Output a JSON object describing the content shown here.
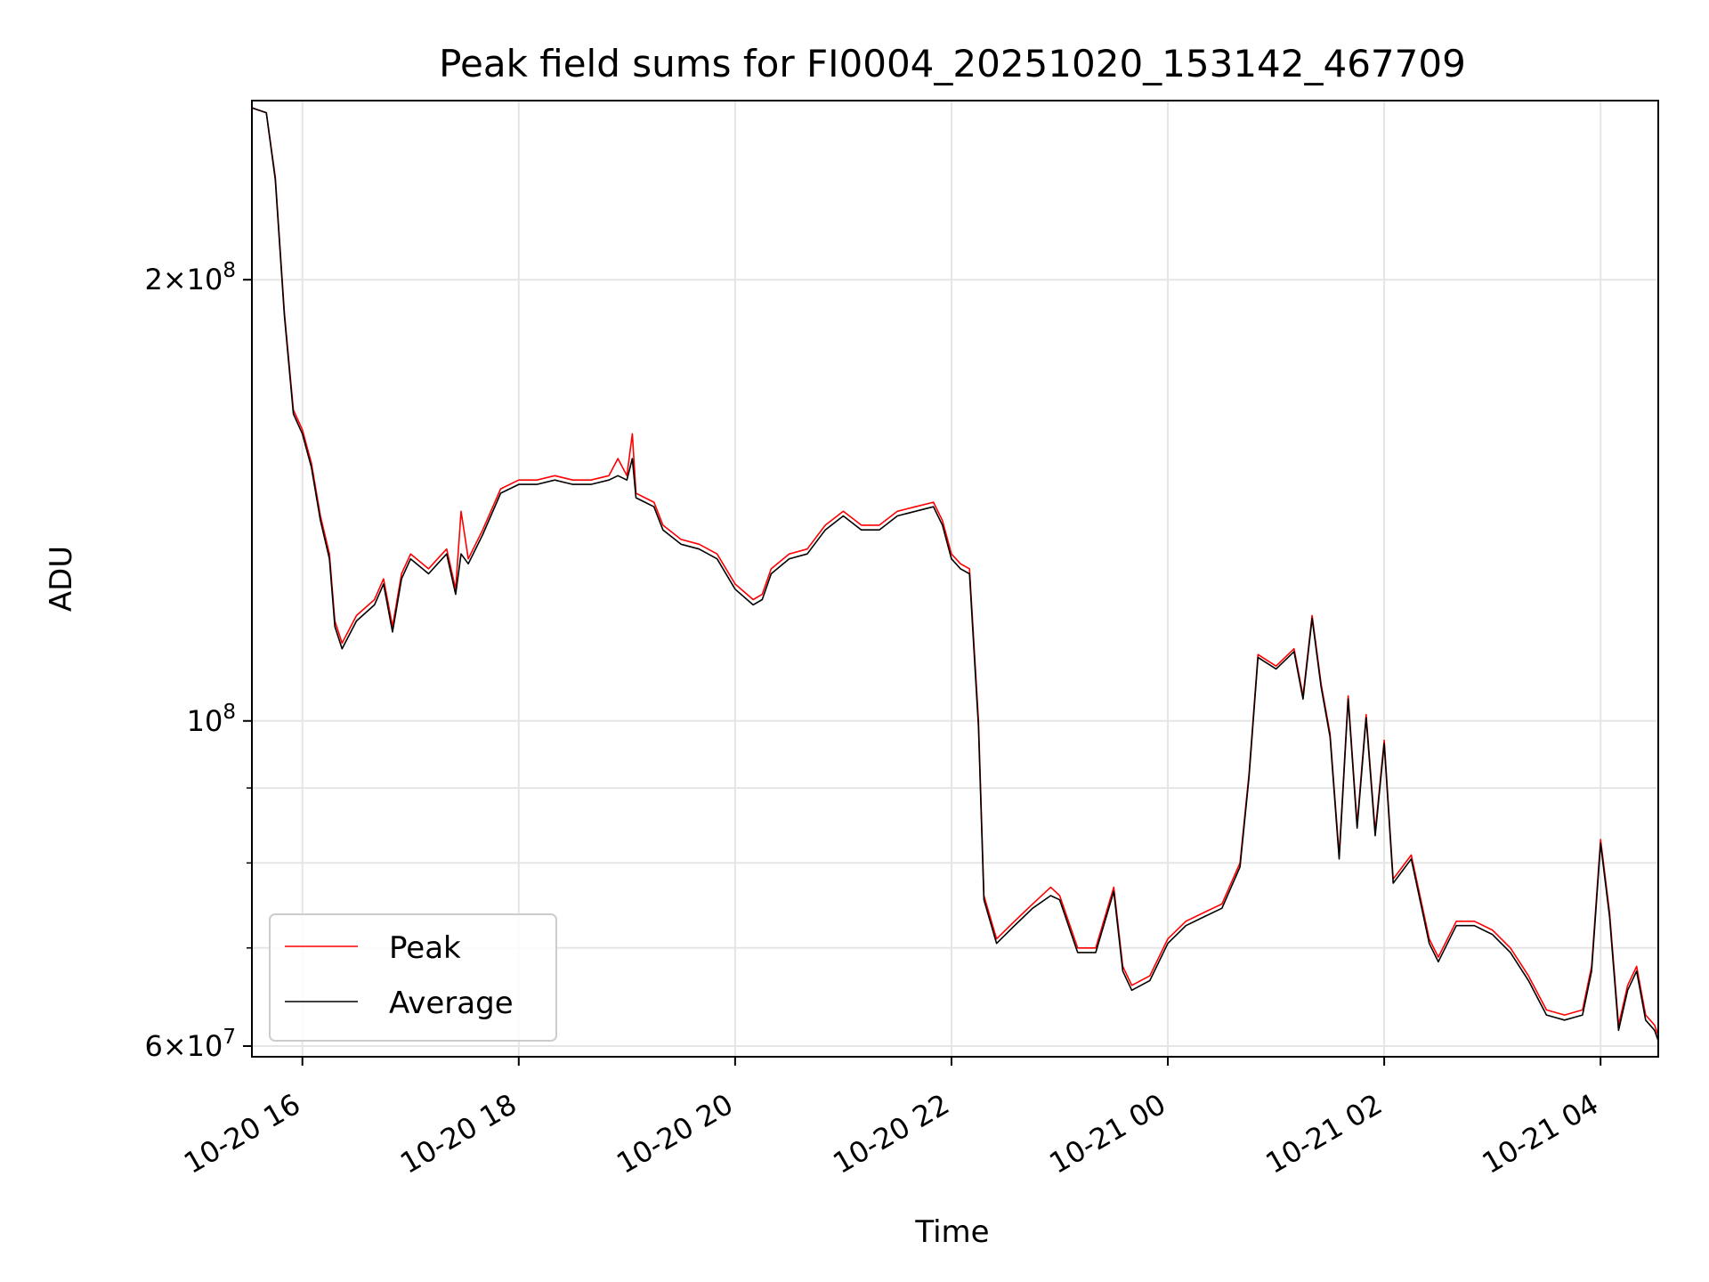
{
  "chart_data": {
    "type": "line",
    "title": "Peak field sums for FI0004_20251020_153142_467709",
    "xlabel": "Time",
    "ylabel": "ADU",
    "yscale": "log",
    "ylim": [
      59000000,
      265000000
    ],
    "xlim": [
      "2025-10-20 15:32",
      "2025-10-21 04:32"
    ],
    "grid": true,
    "legend_position": "lower left",
    "x_ticks": [
      {
        "t": "2025-10-20 16:00",
        "label": "10-20 16"
      },
      {
        "t": "2025-10-20 18:00",
        "label": "10-20 18"
      },
      {
        "t": "2025-10-20 20:00",
        "label": "10-20 20"
      },
      {
        "t": "2025-10-20 22:00",
        "label": "10-20 22"
      },
      {
        "t": "2025-10-21 00:00",
        "label": "10-21 00"
      },
      {
        "t": "2025-10-21 02:00",
        "label": "10-21 02"
      },
      {
        "t": "2025-10-21 04:00",
        "label": "10-21 04"
      }
    ],
    "y_ticks": [
      {
        "value": 200000000,
        "base": "2×10",
        "exp": "8"
      },
      {
        "value": 100000000,
        "base": "10",
        "exp": "8"
      },
      {
        "value": 60000000,
        "base": "6×10",
        "exp": "7"
      }
    ],
    "series": [
      {
        "name": "Peak",
        "color": "#ff0000",
        "points": [
          [
            "2025-10-20 15:32",
            262000000
          ],
          [
            "2025-10-20 15:40",
            260000000
          ],
          [
            "2025-10-20 15:45",
            235000000
          ],
          [
            "2025-10-20 15:50",
            190000000
          ],
          [
            "2025-10-20 15:55",
            163000000
          ],
          [
            "2025-10-20 16:00",
            158000000
          ],
          [
            "2025-10-20 16:05",
            150000000
          ],
          [
            "2025-10-20 16:10",
            138000000
          ],
          [
            "2025-10-20 16:15",
            130000000
          ],
          [
            "2025-10-20 16:18",
            117000000
          ],
          [
            "2025-10-20 16:22",
            113000000
          ],
          [
            "2025-10-20 16:30",
            118000000
          ],
          [
            "2025-10-20 16:40",
            121000000
          ],
          [
            "2025-10-20 16:45",
            125000000
          ],
          [
            "2025-10-20 16:50",
            116000000
          ],
          [
            "2025-10-20 16:55",
            126000000
          ],
          [
            "2025-10-20 17:00",
            130000000
          ],
          [
            "2025-10-20 17:10",
            127000000
          ],
          [
            "2025-10-20 17:15",
            129000000
          ],
          [
            "2025-10-20 17:20",
            131000000
          ],
          [
            "2025-10-20 17:25",
            123000000
          ],
          [
            "2025-10-20 17:28",
            139000000
          ],
          [
            "2025-10-20 17:32",
            129000000
          ],
          [
            "2025-10-20 17:40",
            135000000
          ],
          [
            "2025-10-20 17:50",
            144000000
          ],
          [
            "2025-10-20 18:00",
            146000000
          ],
          [
            "2025-10-20 18:10",
            146000000
          ],
          [
            "2025-10-20 18:20",
            147000000
          ],
          [
            "2025-10-20 18:30",
            146000000
          ],
          [
            "2025-10-20 18:40",
            146000000
          ],
          [
            "2025-10-20 18:50",
            147000000
          ],
          [
            "2025-10-20 18:55",
            151000000
          ],
          [
            "2025-10-20 19:00",
            147000000
          ],
          [
            "2025-10-20 19:03",
            157000000
          ],
          [
            "2025-10-20 19:05",
            143000000
          ],
          [
            "2025-10-20 19:10",
            142000000
          ],
          [
            "2025-10-20 19:15",
            141000000
          ],
          [
            "2025-10-20 19:20",
            136000000
          ],
          [
            "2025-10-20 19:30",
            133000000
          ],
          [
            "2025-10-20 19:40",
            132000000
          ],
          [
            "2025-10-20 19:50",
            130000000
          ],
          [
            "2025-10-20 20:00",
            124000000
          ],
          [
            "2025-10-20 20:10",
            121000000
          ],
          [
            "2025-10-20 20:15",
            122000000
          ],
          [
            "2025-10-20 20:20",
            127000000
          ],
          [
            "2025-10-20 20:30",
            130000000
          ],
          [
            "2025-10-20 20:40",
            131000000
          ],
          [
            "2025-10-20 20:50",
            136000000
          ],
          [
            "2025-10-20 21:00",
            139000000
          ],
          [
            "2025-10-20 21:10",
            136000000
          ],
          [
            "2025-10-20 21:20",
            136000000
          ],
          [
            "2025-10-20 21:30",
            139000000
          ],
          [
            "2025-10-20 21:40",
            140000000
          ],
          [
            "2025-10-20 21:50",
            141000000
          ],
          [
            "2025-10-20 21:55",
            137000000
          ],
          [
            "2025-10-20 22:00",
            130000000
          ],
          [
            "2025-10-20 22:05",
            128000000
          ],
          [
            "2025-10-20 22:10",
            127000000
          ],
          [
            "2025-10-20 22:15",
            100000000
          ],
          [
            "2025-10-20 22:18",
            76000000
          ],
          [
            "2025-10-20 22:25",
            71000000
          ],
          [
            "2025-10-20 22:35",
            73000000
          ],
          [
            "2025-10-20 22:45",
            75000000
          ],
          [
            "2025-10-20 22:55",
            77000000
          ],
          [
            "2025-10-20 23:00",
            76000000
          ],
          [
            "2025-10-20 23:10",
            70000000
          ],
          [
            "2025-10-20 23:20",
            70000000
          ],
          [
            "2025-10-20 23:30",
            77000000
          ],
          [
            "2025-10-20 23:35",
            68000000
          ],
          [
            "2025-10-20 23:40",
            66000000
          ],
          [
            "2025-10-20 23:50",
            67000000
          ],
          [
            "2025-10-21 00:00",
            71000000
          ],
          [
            "2025-10-21 00:10",
            73000000
          ],
          [
            "2025-10-21 00:20",
            74000000
          ],
          [
            "2025-10-21 00:30",
            75000000
          ],
          [
            "2025-10-21 00:40",
            80000000
          ],
          [
            "2025-10-21 00:45",
            92000000
          ],
          [
            "2025-10-21 00:50",
            111000000
          ],
          [
            "2025-10-21 01:00",
            109000000
          ],
          [
            "2025-10-21 01:10",
            112000000
          ],
          [
            "2025-10-21 01:15",
            104000000
          ],
          [
            "2025-10-21 01:20",
            118000000
          ],
          [
            "2025-10-21 01:25",
            106000000
          ],
          [
            "2025-10-21 01:30",
            98000000
          ],
          [
            "2025-10-21 01:35",
            81000000
          ],
          [
            "2025-10-21 01:40",
            104000000
          ],
          [
            "2025-10-21 01:45",
            85000000
          ],
          [
            "2025-10-21 01:50",
            101000000
          ],
          [
            "2025-10-21 01:55",
            84000000
          ],
          [
            "2025-10-21 02:00",
            97000000
          ],
          [
            "2025-10-21 02:05",
            78000000
          ],
          [
            "2025-10-21 02:15",
            81000000
          ],
          [
            "2025-10-21 02:25",
            71000000
          ],
          [
            "2025-10-21 02:30",
            69000000
          ],
          [
            "2025-10-21 02:40",
            73000000
          ],
          [
            "2025-10-21 02:50",
            73000000
          ],
          [
            "2025-10-21 03:00",
            72000000
          ],
          [
            "2025-10-21 03:10",
            70000000
          ],
          [
            "2025-10-21 03:20",
            67000000
          ],
          [
            "2025-10-21 03:30",
            63500000
          ],
          [
            "2025-10-21 03:40",
            63000000
          ],
          [
            "2025-10-21 03:50",
            63500000
          ],
          [
            "2025-10-21 03:55",
            68000000
          ],
          [
            "2025-10-21 04:00",
            83000000
          ],
          [
            "2025-10-21 04:05",
            74000000
          ],
          [
            "2025-10-21 04:10",
            62000000
          ],
          [
            "2025-10-21 04:15",
            66000000
          ],
          [
            "2025-10-21 04:20",
            68000000
          ],
          [
            "2025-10-21 04:25",
            63000000
          ],
          [
            "2025-10-21 04:30",
            62000000
          ],
          [
            "2025-10-21 04:32",
            61000000
          ]
        ]
      },
      {
        "name": "Average",
        "color": "#000000",
        "points": [
          [
            "2025-10-20 15:32",
            262000000
          ],
          [
            "2025-10-20 15:40",
            260000000
          ],
          [
            "2025-10-20 15:45",
            234000000
          ],
          [
            "2025-10-20 15:50",
            189000000
          ],
          [
            "2025-10-20 15:55",
            162000000
          ],
          [
            "2025-10-20 16:00",
            157000000
          ],
          [
            "2025-10-20 16:05",
            149000000
          ],
          [
            "2025-10-20 16:10",
            137000000
          ],
          [
            "2025-10-20 16:15",
            129000000
          ],
          [
            "2025-10-20 16:18",
            116000000
          ],
          [
            "2025-10-20 16:22",
            112000000
          ],
          [
            "2025-10-20 16:30",
            117000000
          ],
          [
            "2025-10-20 16:40",
            120000000
          ],
          [
            "2025-10-20 16:45",
            124000000
          ],
          [
            "2025-10-20 16:50",
            115000000
          ],
          [
            "2025-10-20 16:55",
            125000000
          ],
          [
            "2025-10-20 17:00",
            129000000
          ],
          [
            "2025-10-20 17:10",
            126000000
          ],
          [
            "2025-10-20 17:15",
            128000000
          ],
          [
            "2025-10-20 17:20",
            130000000
          ],
          [
            "2025-10-20 17:25",
            122000000
          ],
          [
            "2025-10-20 17:28",
            130000000
          ],
          [
            "2025-10-20 17:32",
            128000000
          ],
          [
            "2025-10-20 17:40",
            134000000
          ],
          [
            "2025-10-20 17:50",
            143000000
          ],
          [
            "2025-10-20 18:00",
            145000000
          ],
          [
            "2025-10-20 18:10",
            145000000
          ],
          [
            "2025-10-20 18:20",
            146000000
          ],
          [
            "2025-10-20 18:30",
            145000000
          ],
          [
            "2025-10-20 18:40",
            145000000
          ],
          [
            "2025-10-20 18:50",
            146000000
          ],
          [
            "2025-10-20 18:55",
            147000000
          ],
          [
            "2025-10-20 19:00",
            146000000
          ],
          [
            "2025-10-20 19:03",
            151000000
          ],
          [
            "2025-10-20 19:05",
            142000000
          ],
          [
            "2025-10-20 19:10",
            141000000
          ],
          [
            "2025-10-20 19:15",
            140000000
          ],
          [
            "2025-10-20 19:20",
            135000000
          ],
          [
            "2025-10-20 19:30",
            132000000
          ],
          [
            "2025-10-20 19:40",
            131000000
          ],
          [
            "2025-10-20 19:50",
            129000000
          ],
          [
            "2025-10-20 20:00",
            123000000
          ],
          [
            "2025-10-20 20:10",
            120000000
          ],
          [
            "2025-10-20 20:15",
            121000000
          ],
          [
            "2025-10-20 20:20",
            126000000
          ],
          [
            "2025-10-20 20:30",
            129000000
          ],
          [
            "2025-10-20 20:40",
            130000000
          ],
          [
            "2025-10-20 20:50",
            135000000
          ],
          [
            "2025-10-20 21:00",
            138000000
          ],
          [
            "2025-10-20 21:10",
            135000000
          ],
          [
            "2025-10-20 21:20",
            135000000
          ],
          [
            "2025-10-20 21:30",
            138000000
          ],
          [
            "2025-10-20 21:40",
            139000000
          ],
          [
            "2025-10-20 21:50",
            140000000
          ],
          [
            "2025-10-20 21:55",
            136000000
          ],
          [
            "2025-10-20 22:00",
            129000000
          ],
          [
            "2025-10-20 22:05",
            127000000
          ],
          [
            "2025-10-20 22:10",
            126000000
          ],
          [
            "2025-10-20 22:15",
            99000000
          ],
          [
            "2025-10-20 22:18",
            75500000
          ],
          [
            "2025-10-20 22:25",
            70500000
          ],
          [
            "2025-10-20 22:35",
            72500000
          ],
          [
            "2025-10-20 22:45",
            74500000
          ],
          [
            "2025-10-20 22:55",
            76000000
          ],
          [
            "2025-10-20 23:00",
            75500000
          ],
          [
            "2025-10-20 23:10",
            69500000
          ],
          [
            "2025-10-20 23:20",
            69500000
          ],
          [
            "2025-10-20 23:30",
            76500000
          ],
          [
            "2025-10-20 23:35",
            67500000
          ],
          [
            "2025-10-20 23:40",
            65500000
          ],
          [
            "2025-10-20 23:50",
            66500000
          ],
          [
            "2025-10-21 00:00",
            70500000
          ],
          [
            "2025-10-21 00:10",
            72500000
          ],
          [
            "2025-10-21 00:20",
            73500000
          ],
          [
            "2025-10-21 00:30",
            74500000
          ],
          [
            "2025-10-21 00:40",
            79500000
          ],
          [
            "2025-10-21 00:45",
            91500000
          ],
          [
            "2025-10-21 00:50",
            110500000
          ],
          [
            "2025-10-21 01:00",
            108500000
          ],
          [
            "2025-10-21 01:10",
            111500000
          ],
          [
            "2025-10-21 01:15",
            103500000
          ],
          [
            "2025-10-21 01:20",
            117500000
          ],
          [
            "2025-10-21 01:25",
            105500000
          ],
          [
            "2025-10-21 01:30",
            97500000
          ],
          [
            "2025-10-21 01:35",
            80500000
          ],
          [
            "2025-10-21 01:40",
            103500000
          ],
          [
            "2025-10-21 01:45",
            84500000
          ],
          [
            "2025-10-21 01:50",
            100500000
          ],
          [
            "2025-10-21 01:55",
            83500000
          ],
          [
            "2025-10-21 02:00",
            96500000
          ],
          [
            "2025-10-21 02:05",
            77500000
          ],
          [
            "2025-10-21 02:15",
            80500000
          ],
          [
            "2025-10-21 02:25",
            70500000
          ],
          [
            "2025-10-21 02:30",
            68500000
          ],
          [
            "2025-10-21 02:40",
            72500000
          ],
          [
            "2025-10-21 02:50",
            72500000
          ],
          [
            "2025-10-21 03:00",
            71500000
          ],
          [
            "2025-10-21 03:10",
            69500000
          ],
          [
            "2025-10-21 03:20",
            66500000
          ],
          [
            "2025-10-21 03:30",
            63000000
          ],
          [
            "2025-10-21 03:40",
            62500000
          ],
          [
            "2025-10-21 03:50",
            63000000
          ],
          [
            "2025-10-21 03:55",
            67500000
          ],
          [
            "2025-10-21 04:00",
            82500000
          ],
          [
            "2025-10-21 04:05",
            73500000
          ],
          [
            "2025-10-21 04:10",
            61500000
          ],
          [
            "2025-10-21 04:15",
            65500000
          ],
          [
            "2025-10-21 04:20",
            67500000
          ],
          [
            "2025-10-21 04:25",
            62500000
          ],
          [
            "2025-10-21 04:30",
            61500000
          ],
          [
            "2025-10-21 04:32",
            60500000
          ]
        ]
      }
    ]
  }
}
